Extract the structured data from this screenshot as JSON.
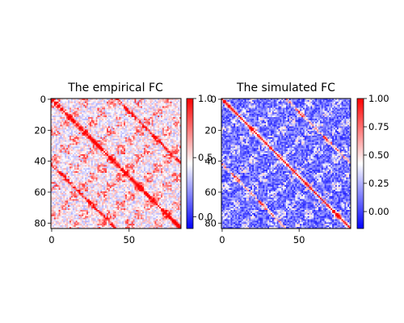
{
  "chart_data": [
    {
      "type": "heatmap",
      "title": "The empirical FC",
      "matrix_size": 84,
      "x_ticks": [
        "0",
        "50"
      ],
      "x_tick_values": [
        0,
        50
      ],
      "y_ticks": [
        "0",
        "20",
        "40",
        "60",
        "80"
      ],
      "y_tick_values": [
        0,
        20,
        40,
        60,
        80
      ],
      "colormap": "bwr",
      "diagonal_value": 1.0,
      "background_value": 0.45,
      "block_value": 0.7,
      "clim": [
        -0.1,
        1.0
      ],
      "colorbar_ticks": [
        "1.0",
        "0.5",
        "0.0"
      ],
      "colorbar_tick_values": [
        1.0,
        0.5,
        0.0
      ]
    },
    {
      "type": "heatmap",
      "title": "The simulated FC",
      "matrix_size": 84,
      "x_ticks": [
        "0",
        "50"
      ],
      "x_tick_values": [
        0,
        50
      ],
      "y_ticks": [
        "0",
        "20",
        "40",
        "60",
        "80"
      ],
      "y_tick_values": [
        0,
        20,
        40,
        60,
        80
      ],
      "colormap": "bwr",
      "diagonal_value": 1.0,
      "background_value": 0.1,
      "block_value": 0.35,
      "clim": [
        -0.15,
        1.0
      ],
      "colorbar_ticks": [
        "1.00",
        "0.75",
        "0.50",
        "0.25",
        "0.00"
      ],
      "colorbar_tick_values": [
        1.0,
        0.75,
        0.5,
        0.25,
        0.0
      ]
    }
  ]
}
